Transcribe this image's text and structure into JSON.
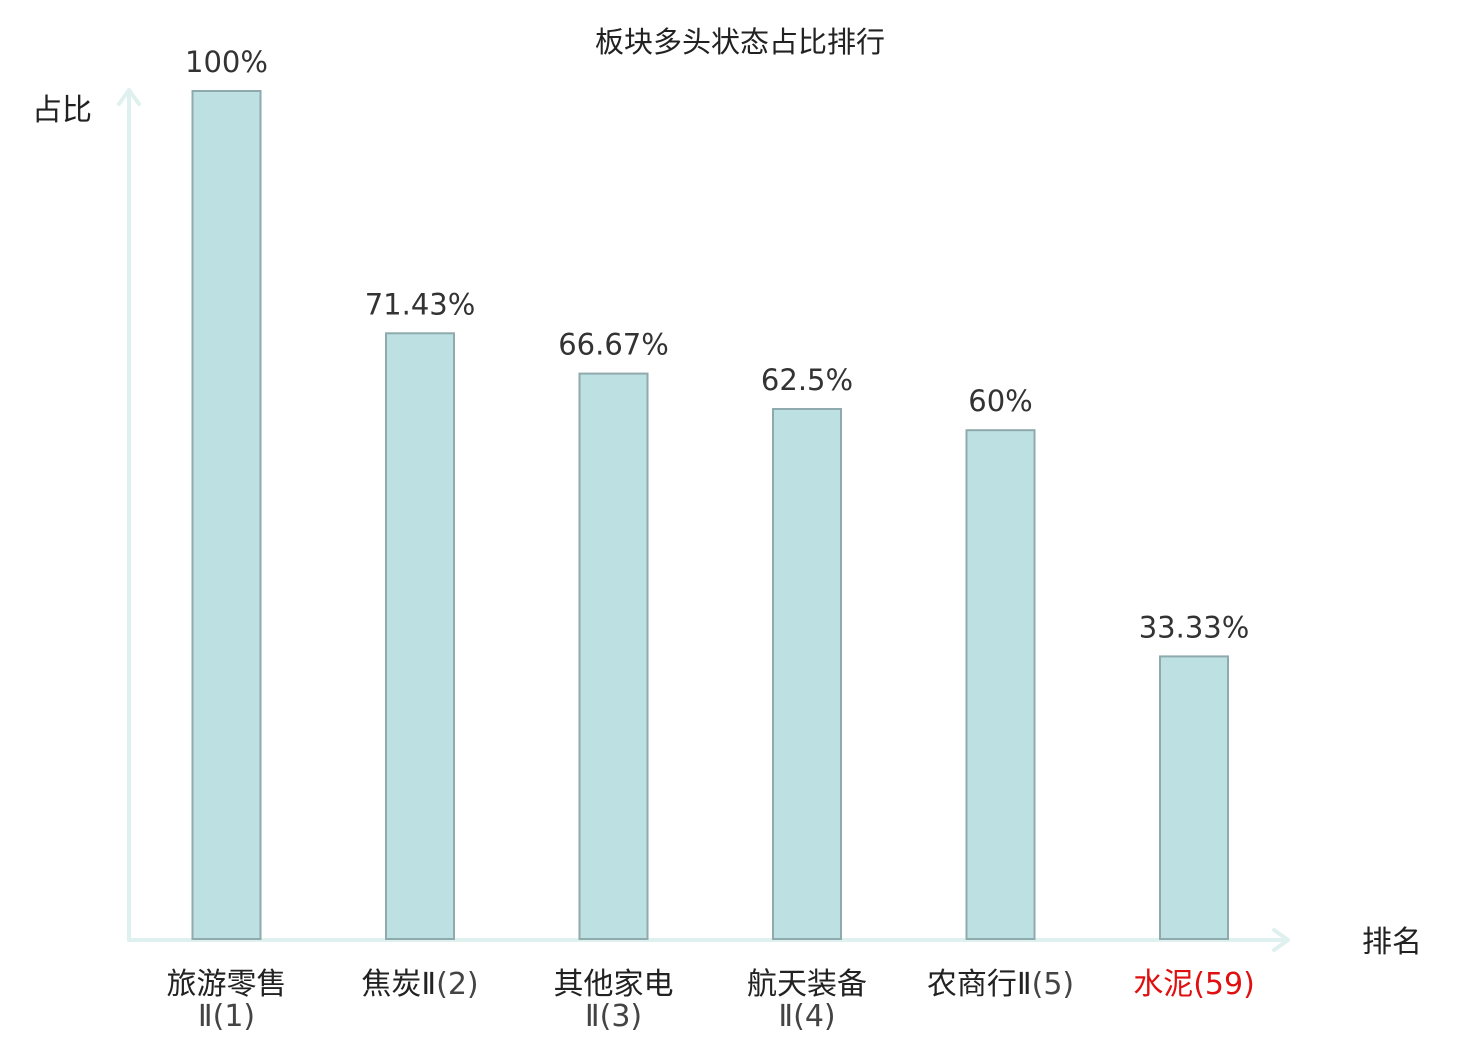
{
  "chart_data": {
    "type": "bar",
    "title": "板块多头状态占比排行",
    "ylabel": "占比",
    "xlabel": "排名",
    "ylim": [
      0,
      100
    ],
    "grid": false,
    "legend": "none",
    "categories": [
      {
        "name": "旅游零售Ⅱ",
        "rank": "(1)",
        "highlight": false
      },
      {
        "name": "焦炭Ⅱ",
        "rank": "(2)",
        "highlight": false
      },
      {
        "name": "其他家电Ⅱ",
        "rank": "(3)",
        "highlight": false
      },
      {
        "name": "航天装备Ⅱ",
        "rank": "(4)",
        "highlight": false
      },
      {
        "name": "农商行Ⅱ",
        "rank": "(5)",
        "highlight": false
      },
      {
        "name": "水泥",
        "rank": "(59)",
        "highlight": true
      }
    ],
    "values": [
      100,
      71.43,
      66.67,
      62.5,
      60,
      33.33
    ],
    "value_labels": [
      "100%",
      "71.43%",
      "66.67%",
      "62.5%",
      "60%",
      "33.33%"
    ],
    "colors": {
      "bar_fill": "#bde1e3",
      "bar_stroke": "#8faaad",
      "axis": "#dff1ee",
      "highlight_text": "#e01010"
    }
  }
}
